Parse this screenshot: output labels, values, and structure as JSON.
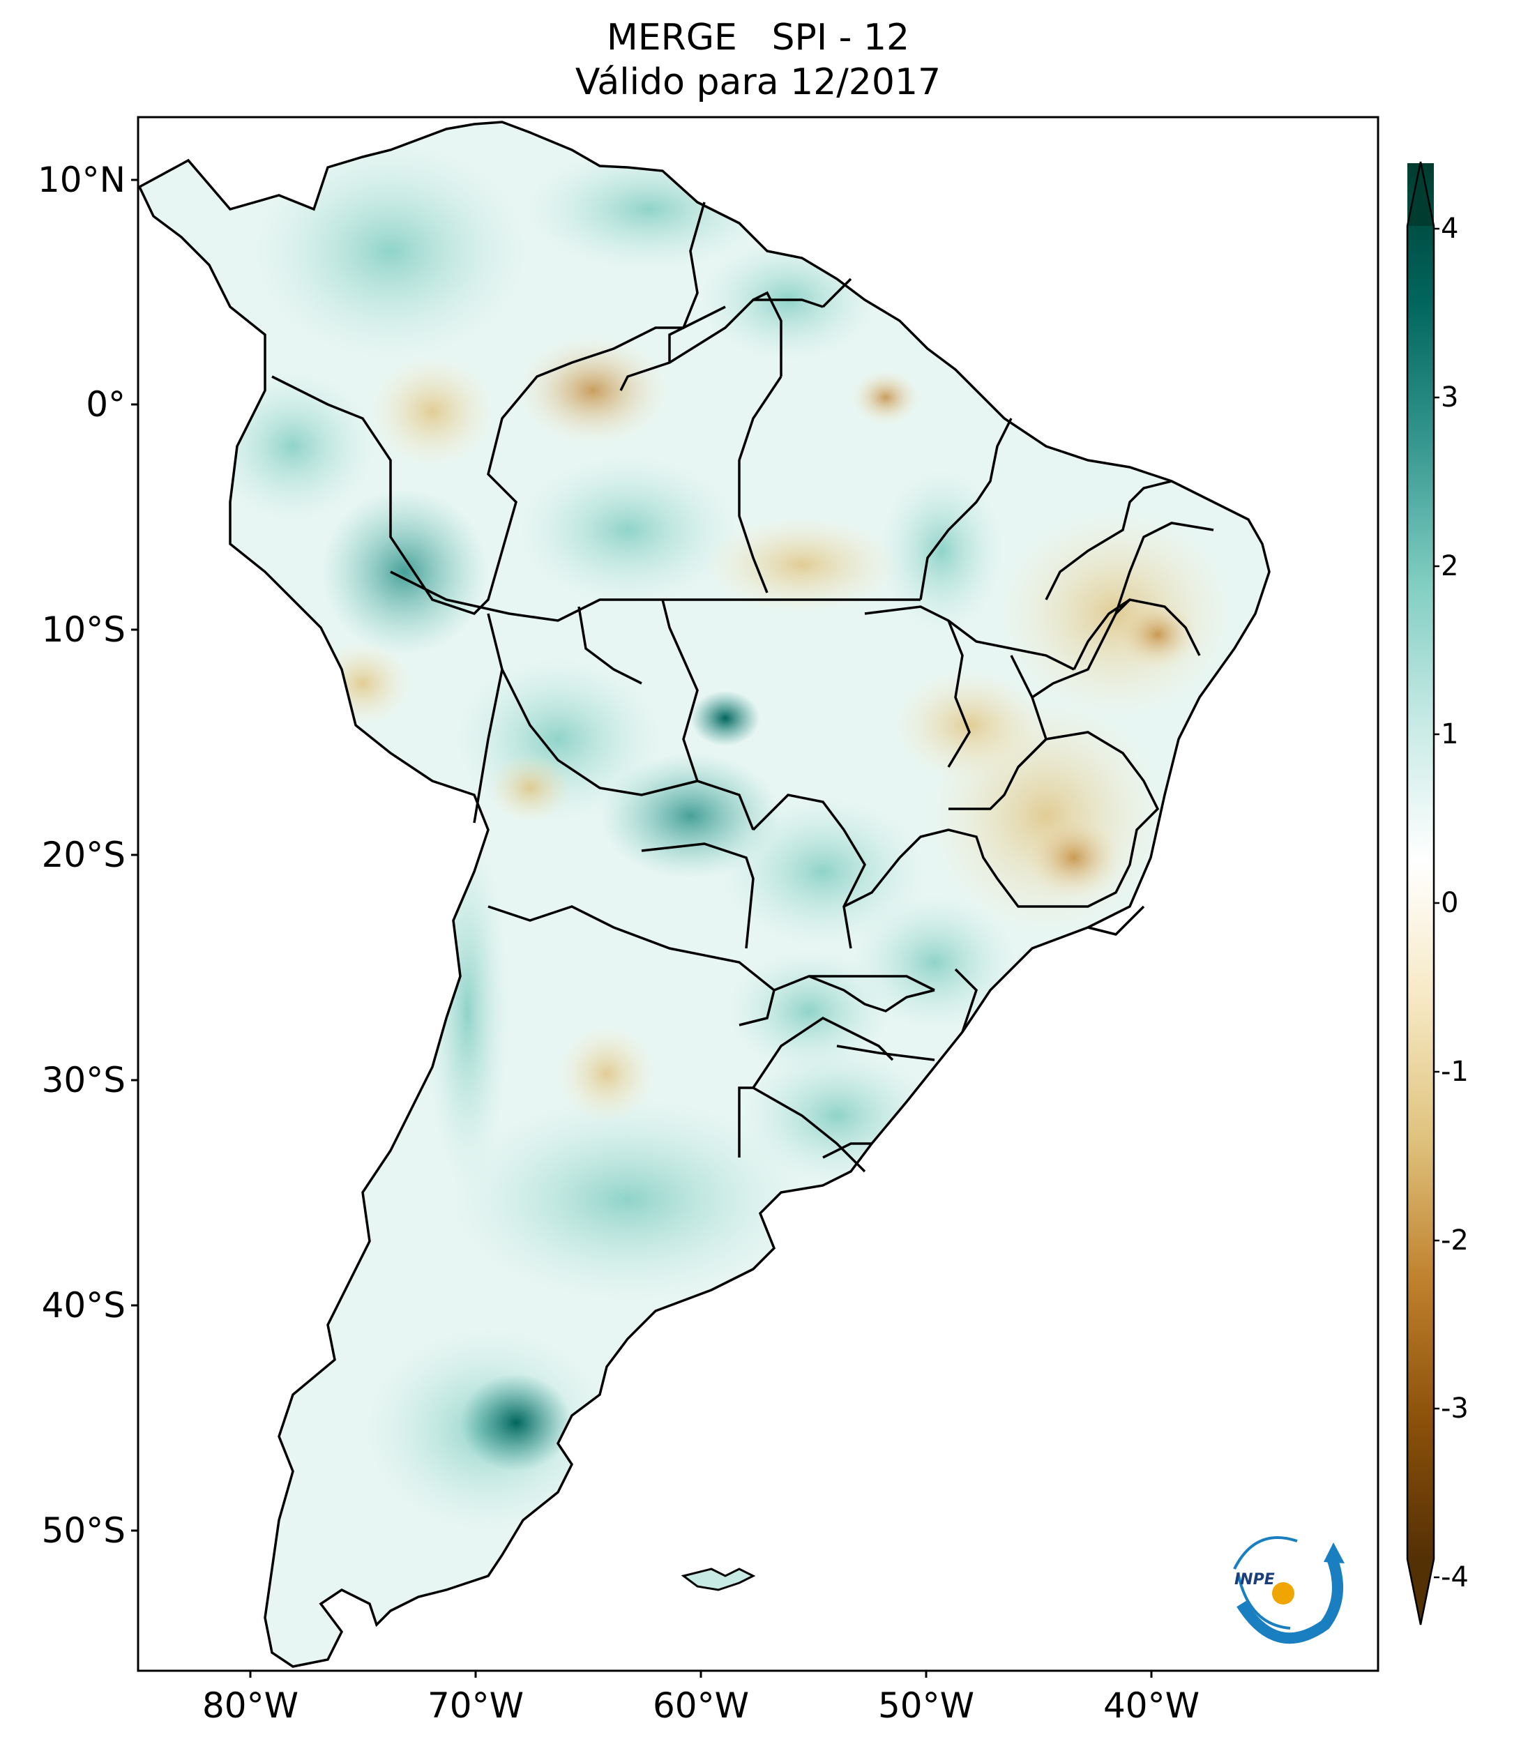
{
  "title": {
    "line1": "MERGE   SPI - 12",
    "line2": "Válido para 12/2017"
  },
  "map": {
    "variable": "SPI - 12",
    "product": "MERGE",
    "region": "South America",
    "lon_range": [
      -85,
      -30
    ],
    "lat_range": [
      -56,
      13
    ],
    "x_ticks": [
      {
        "lon": -80,
        "label": "80°W"
      },
      {
        "lon": -70,
        "label": "70°W"
      },
      {
        "lon": -60,
        "label": "60°W"
      },
      {
        "lon": -50,
        "label": "50°W"
      },
      {
        "lon": -40,
        "label": "40°W"
      }
    ],
    "y_ticks": [
      {
        "lat": 10,
        "label": "10°N"
      },
      {
        "lat": 0,
        "label": "0°"
      },
      {
        "lat": -10,
        "label": "10°S"
      },
      {
        "lat": -20,
        "label": "20°S"
      },
      {
        "lat": -30,
        "label": "30°S"
      },
      {
        "lat": -40,
        "label": "40°S"
      },
      {
        "lat": -50,
        "label": "50°S"
      }
    ]
  },
  "colorbar": {
    "range": [
      -4,
      4
    ],
    "ticks": [
      {
        "value": 4,
        "label": "4"
      },
      {
        "value": 3,
        "label": "3"
      },
      {
        "value": 2,
        "label": "2"
      },
      {
        "value": 1,
        "label": "1"
      },
      {
        "value": 0,
        "label": "0"
      },
      {
        "value": -1,
        "label": "-1"
      },
      {
        "value": -2,
        "label": "-2"
      },
      {
        "value": -3,
        "label": "-3"
      },
      {
        "value": -4,
        "label": "-4"
      }
    ],
    "colors": [
      "#543005",
      "#8c510a",
      "#bf812d",
      "#dfc27d",
      "#f6e8c3",
      "#ffffff",
      "#c7eae5",
      "#80cdc1",
      "#35978f",
      "#01665e",
      "#003c30"
    ]
  },
  "logo": {
    "text": "INPE"
  }
}
